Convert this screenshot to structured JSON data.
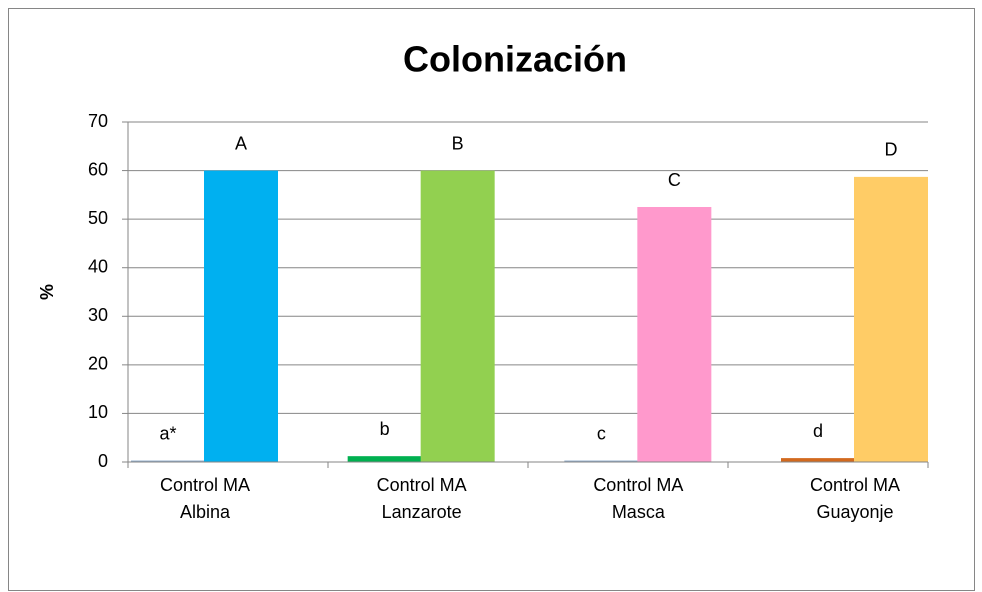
{
  "chart_data": {
    "type": "bar",
    "title": "Colonización",
    "y_label": "%",
    "categories": [
      [
        "Control MA",
        "Albina"
      ],
      [
        "Control MA",
        "Lanzarote"
      ],
      [
        "Control MA",
        "Masca"
      ],
      [
        "Control MA",
        "Guayonje"
      ]
    ],
    "series": [
      {
        "values": [
          0.3,
          1.2,
          0.3,
          0.8
        ],
        "colors": [
          "#8ea9c8",
          "#00b050",
          "#8ea9c8",
          "#d2691e"
        ],
        "value_labels": [
          "a*",
          "b",
          "c",
          "d"
        ]
      },
      {
        "values": [
          60,
          60,
          52.5,
          58.7
        ],
        "colors": [
          "#00b0f0",
          "#92d050",
          "#ff99cc",
          "#ffcc66"
        ],
        "value_labels": [
          "A",
          "B",
          "C",
          "D"
        ]
      }
    ],
    "ylim": [
      0,
      70
    ],
    "yticks": [
      0,
      10,
      20,
      30,
      40,
      50,
      60,
      70
    ],
    "grid": true
  }
}
